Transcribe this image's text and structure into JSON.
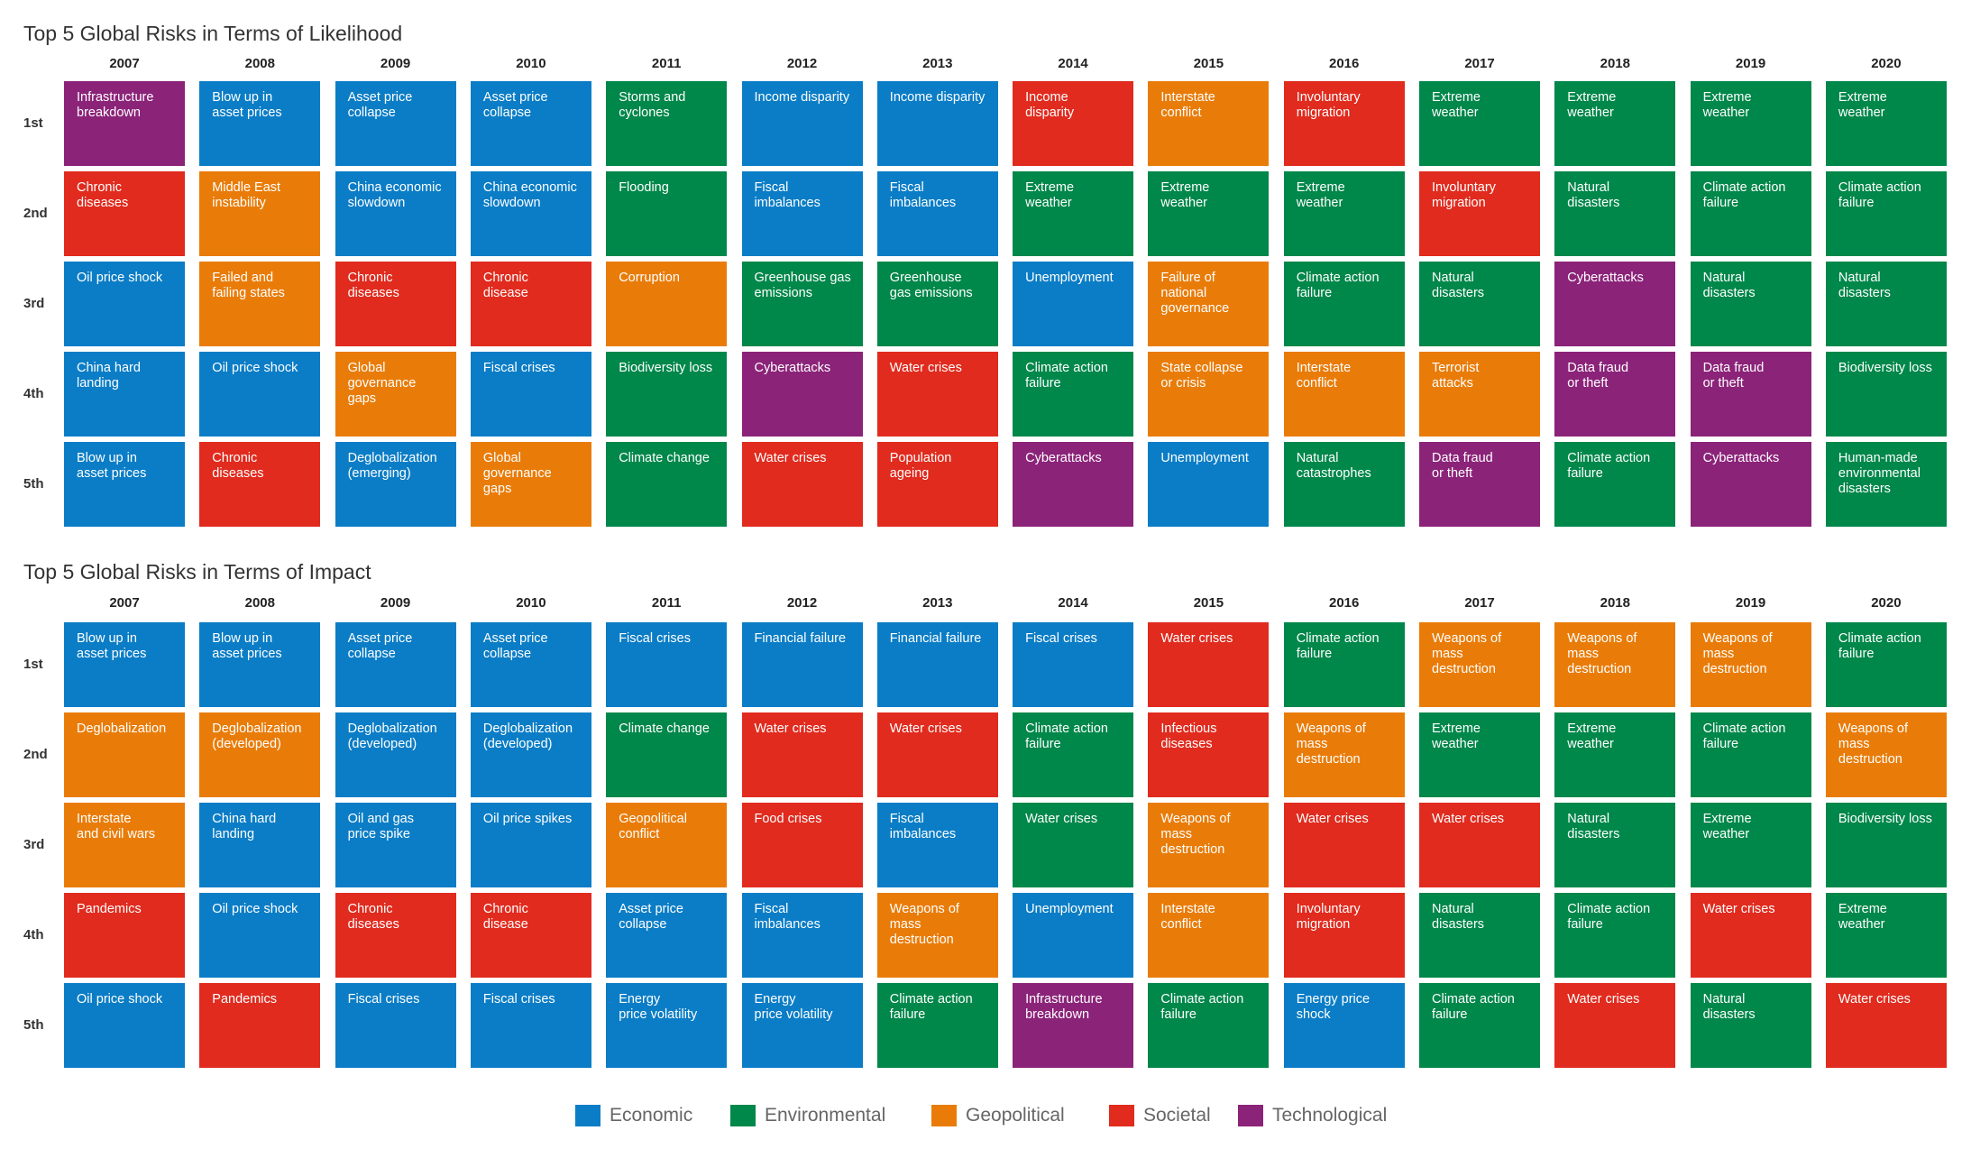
{
  "categories_colors": {
    "Economic": "#0b7dc6",
    "Environmental": "#00874a",
    "Geopolitical": "#e97c09",
    "Societal": "#e02b1e",
    "Technological": "#8b2379"
  },
  "legend": [
    {
      "label": "Economic",
      "color": "#0b7dc6"
    },
    {
      "label": "Environmental",
      "color": "#00874a"
    },
    {
      "label": "Geopolitical",
      "color": "#e97c09"
    },
    {
      "label": "Societal",
      "color": "#e02b1e"
    },
    {
      "label": "Technological",
      "color": "#8b2379"
    }
  ],
  "chart_data": [
    {
      "type": "table",
      "title": "Top 5 Global Risks in Terms of Likelihood",
      "years": [
        "2007",
        "2008",
        "2009",
        "2010",
        "2011",
        "2012",
        "2013",
        "2014",
        "2015",
        "2016",
        "2017",
        "2018",
        "2019",
        "2020"
      ],
      "ranks": [
        "1st",
        "2nd",
        "3rd",
        "4th",
        "5th"
      ],
      "cells": [
        [
          {
            "text": "Infrastructure\nbreakdown",
            "category": "Technological"
          },
          {
            "text": "Blow up in\nasset prices",
            "category": "Economic"
          },
          {
            "text": "Asset price\ncollapse",
            "category": "Economic"
          },
          {
            "text": "Asset price\ncollapse",
            "category": "Economic"
          },
          {
            "text": "Storms and\ncyclones",
            "category": "Environmental"
          },
          {
            "text": "Income disparity",
            "category": "Economic"
          },
          {
            "text": "Income disparity",
            "category": "Economic"
          },
          {
            "text": "Income\ndisparity",
            "category": "Societal"
          },
          {
            "text": "Interstate\nconflict",
            "category": "Geopolitical"
          },
          {
            "text": "Involuntary\nmigration",
            "category": "Societal"
          },
          {
            "text": "Extreme\nweather",
            "category": "Environmental"
          },
          {
            "text": "Extreme\nweather",
            "category": "Environmental"
          },
          {
            "text": "Extreme\nweather",
            "category": "Environmental"
          },
          {
            "text": "Extreme\nweather",
            "category": "Environmental"
          }
        ],
        [
          {
            "text": "Chronic\ndiseases",
            "category": "Societal"
          },
          {
            "text": "Middle East\ninstability",
            "category": "Geopolitical"
          },
          {
            "text": "China economic\nslowdown",
            "category": "Economic"
          },
          {
            "text": "China economic\nslowdown",
            "category": "Economic"
          },
          {
            "text": "Flooding",
            "category": "Environmental"
          },
          {
            "text": "Fiscal\nimbalances",
            "category": "Economic"
          },
          {
            "text": "Fiscal\nimbalances",
            "category": "Economic"
          },
          {
            "text": "Extreme\nweather",
            "category": "Environmental"
          },
          {
            "text": "Extreme\nweather",
            "category": "Environmental"
          },
          {
            "text": "Extreme\nweather",
            "category": "Environmental"
          },
          {
            "text": "Involuntary\nmigration",
            "category": "Societal"
          },
          {
            "text": "Natural\ndisasters",
            "category": "Environmental"
          },
          {
            "text": "Climate action\nfailure",
            "category": "Environmental"
          },
          {
            "text": "Climate action\nfailure",
            "category": "Environmental"
          }
        ],
        [
          {
            "text": "Oil price shock",
            "category": "Economic"
          },
          {
            "text": "Failed and\nfailing states",
            "category": "Geopolitical"
          },
          {
            "text": "Chronic\ndiseases",
            "category": "Societal"
          },
          {
            "text": "Chronic\ndisease",
            "category": "Societal"
          },
          {
            "text": "Corruption",
            "category": "Geopolitical"
          },
          {
            "text": "Greenhouse gas\nemissions",
            "category": "Environmental"
          },
          {
            "text": "Greenhouse\ngas emissions",
            "category": "Environmental"
          },
          {
            "text": "Unemployment",
            "category": "Economic"
          },
          {
            "text": "Failure of\nnational\ngovernance",
            "category": "Geopolitical"
          },
          {
            "text": "Climate action\nfailure",
            "category": "Environmental"
          },
          {
            "text": "Natural\ndisasters",
            "category": "Environmental"
          },
          {
            "text": "Cyberattacks",
            "category": "Technological"
          },
          {
            "text": "Natural\ndisasters",
            "category": "Environmental"
          },
          {
            "text": "Natural\ndisasters",
            "category": "Environmental"
          }
        ],
        [
          {
            "text": "China hard\nlanding",
            "category": "Economic"
          },
          {
            "text": "Oil price shock",
            "category": "Economic"
          },
          {
            "text": "Global\ngovernance\ngaps",
            "category": "Geopolitical"
          },
          {
            "text": "Fiscal crises",
            "category": "Economic"
          },
          {
            "text": "Biodiversity loss",
            "category": "Environmental"
          },
          {
            "text": "Cyberattacks",
            "category": "Technological"
          },
          {
            "text": "Water crises",
            "category": "Societal"
          },
          {
            "text": "Climate action\nfailure",
            "category": "Environmental"
          },
          {
            "text": "State collapse\nor crisis",
            "category": "Geopolitical"
          },
          {
            "text": "Interstate\nconflict",
            "category": "Geopolitical"
          },
          {
            "text": "Terrorist\nattacks",
            "category": "Geopolitical"
          },
          {
            "text": "Data fraud\nor theft",
            "category": "Technological"
          },
          {
            "text": "Data fraud\nor theft",
            "category": "Technological"
          },
          {
            "text": "Biodiversity loss",
            "category": "Environmental"
          }
        ],
        [
          {
            "text": "Blow up in\nasset prices",
            "category": "Economic"
          },
          {
            "text": "Chronic\ndiseases",
            "category": "Societal"
          },
          {
            "text": "Deglobalization\n(emerging)",
            "category": "Economic"
          },
          {
            "text": "Global\ngovernance\ngaps",
            "category": "Geopolitical"
          },
          {
            "text": "Climate change",
            "category": "Environmental"
          },
          {
            "text": "Water crises",
            "category": "Societal"
          },
          {
            "text": "Population\nageing",
            "category": "Societal"
          },
          {
            "text": "Cyberattacks",
            "category": "Technological"
          },
          {
            "text": "Unemployment",
            "category": "Economic"
          },
          {
            "text": "Natural\ncatastrophes",
            "category": "Environmental"
          },
          {
            "text": "Data fraud\nor theft",
            "category": "Technological"
          },
          {
            "text": "Climate action\nfailure",
            "category": "Environmental"
          },
          {
            "text": "Cyberattacks",
            "category": "Technological"
          },
          {
            "text": "Human-made\nenvironmental\ndisasters",
            "category": "Environmental"
          }
        ]
      ]
    },
    {
      "type": "table",
      "title": "Top 5 Global Risks in Terms of Impact",
      "years": [
        "2007",
        "2008",
        "2009",
        "2010",
        "2011",
        "2012",
        "2013",
        "2014",
        "2015",
        "2016",
        "2017",
        "2018",
        "2019",
        "2020"
      ],
      "ranks": [
        "1st",
        "2nd",
        "3rd",
        "4th",
        "5th"
      ],
      "cells": [
        [
          {
            "text": "Blow up in\nasset prices",
            "category": "Economic"
          },
          {
            "text": "Blow up in\nasset prices",
            "category": "Economic"
          },
          {
            "text": "Asset price\ncollapse",
            "category": "Economic"
          },
          {
            "text": "Asset price\ncollapse",
            "category": "Economic"
          },
          {
            "text": "Fiscal crises",
            "category": "Economic"
          },
          {
            "text": "Financial failure",
            "category": "Economic"
          },
          {
            "text": "Financial failure",
            "category": "Economic"
          },
          {
            "text": "Fiscal crises",
            "category": "Economic"
          },
          {
            "text": "Water crises",
            "category": "Societal"
          },
          {
            "text": "Climate action\nfailure",
            "category": "Environmental"
          },
          {
            "text": "Weapons of\nmass\ndestruction",
            "category": "Geopolitical"
          },
          {
            "text": "Weapons of\nmass\ndestruction",
            "category": "Geopolitical"
          },
          {
            "text": "Weapons of\nmass\ndestruction",
            "category": "Geopolitical"
          },
          {
            "text": "Climate action\nfailure",
            "category": "Environmental"
          }
        ],
        [
          {
            "text": "Deglobalization",
            "category": "Geopolitical"
          },
          {
            "text": "Deglobalization\n(developed)",
            "category": "Geopolitical"
          },
          {
            "text": "Deglobalization\n(developed)",
            "category": "Economic"
          },
          {
            "text": "Deglobalization\n(developed)",
            "category": "Economic"
          },
          {
            "text": "Climate change",
            "category": "Environmental"
          },
          {
            "text": "Water crises",
            "category": "Societal"
          },
          {
            "text": "Water crises",
            "category": "Societal"
          },
          {
            "text": "Climate action\nfailure",
            "category": "Environmental"
          },
          {
            "text": "Infectious\ndiseases",
            "category": "Societal"
          },
          {
            "text": "Weapons of\nmass\ndestruction",
            "category": "Geopolitical"
          },
          {
            "text": "Extreme\nweather",
            "category": "Environmental"
          },
          {
            "text": "Extreme\nweather",
            "category": "Environmental"
          },
          {
            "text": "Climate action\nfailure",
            "category": "Environmental"
          },
          {
            "text": "Weapons of\nmass\ndestruction",
            "category": "Geopolitical"
          }
        ],
        [
          {
            "text": "Interstate\nand civil wars",
            "category": "Geopolitical"
          },
          {
            "text": "China hard\nlanding",
            "category": "Economic"
          },
          {
            "text": "Oil and gas\nprice spike",
            "category": "Economic"
          },
          {
            "text": "Oil price spikes",
            "category": "Economic"
          },
          {
            "text": "Geopolitical\nconflict",
            "category": "Geopolitical"
          },
          {
            "text": "Food crises",
            "category": "Societal"
          },
          {
            "text": "Fiscal\nimbalances",
            "category": "Economic"
          },
          {
            "text": "Water crises",
            "category": "Environmental"
          },
          {
            "text": "Weapons of\nmass\ndestruction",
            "category": "Geopolitical"
          },
          {
            "text": "Water crises",
            "category": "Societal"
          },
          {
            "text": "Water crises",
            "category": "Societal"
          },
          {
            "text": "Natural\ndisasters",
            "category": "Environmental"
          },
          {
            "text": "Extreme\nweather",
            "category": "Environmental"
          },
          {
            "text": "Biodiversity loss",
            "category": "Environmental"
          }
        ],
        [
          {
            "text": "Pandemics",
            "category": "Societal"
          },
          {
            "text": "Oil price shock",
            "category": "Economic"
          },
          {
            "text": "Chronic\ndiseases",
            "category": "Societal"
          },
          {
            "text": "Chronic\ndisease",
            "category": "Societal"
          },
          {
            "text": "Asset price\ncollapse",
            "category": "Economic"
          },
          {
            "text": "Fiscal\nimbalances",
            "category": "Economic"
          },
          {
            "text": "Weapons of\nmass\ndestruction",
            "category": "Geopolitical"
          },
          {
            "text": "Unemployment",
            "category": "Economic"
          },
          {
            "text": "Interstate\nconflict",
            "category": "Geopolitical"
          },
          {
            "text": "Involuntary\nmigration",
            "category": "Societal"
          },
          {
            "text": "Natural\ndisasters",
            "category": "Environmental"
          },
          {
            "text": "Climate action\nfailure",
            "category": "Environmental"
          },
          {
            "text": "Water crises",
            "category": "Societal"
          },
          {
            "text": "Extreme\nweather",
            "category": "Environmental"
          }
        ],
        [
          {
            "text": "Oil price shock",
            "category": "Economic"
          },
          {
            "text": "Pandemics",
            "category": "Societal"
          },
          {
            "text": "Fiscal crises",
            "category": "Economic"
          },
          {
            "text": "Fiscal crises",
            "category": "Economic"
          },
          {
            "text": "Energy\nprice volatility",
            "category": "Economic"
          },
          {
            "text": "Energy\nprice volatility",
            "category": "Economic"
          },
          {
            "text": "Climate action\nfailure",
            "category": "Environmental"
          },
          {
            "text": "Infrastructure\nbreakdown",
            "category": "Technological"
          },
          {
            "text": "Climate action\nfailure",
            "category": "Environmental"
          },
          {
            "text": "Energy price\nshock",
            "category": "Economic"
          },
          {
            "text": "Climate action\nfailure",
            "category": "Environmental"
          },
          {
            "text": "Water crises",
            "category": "Societal"
          },
          {
            "text": "Natural\ndisasters",
            "category": "Environmental"
          },
          {
            "text": "Water crises",
            "category": "Societal"
          }
        ]
      ]
    }
  ]
}
